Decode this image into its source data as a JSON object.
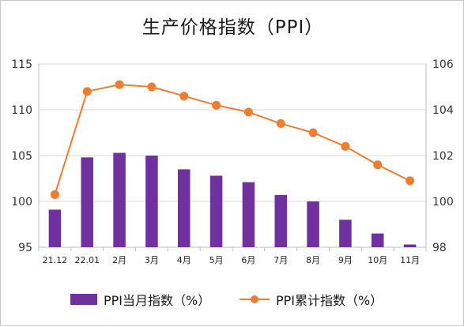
{
  "chart_data": {
    "type": "bar+line",
    "title": "生产价格指数（PPI）",
    "categories": [
      "21.12",
      "22.01",
      "2月",
      "3月",
      "4月",
      "5月",
      "6月",
      "7月",
      "8月",
      "9月",
      "10月",
      "11月"
    ],
    "series": [
      {
        "name": "PPI当月指数（%）",
        "type": "bar",
        "axis": "left",
        "color": "#7030a0",
        "values": [
          99.1,
          104.8,
          105.3,
          105.0,
          103.5,
          102.8,
          102.1,
          100.7,
          100.0,
          98.0,
          96.5,
          95.3
        ]
      },
      {
        "name": "PPI累计指数（%）",
        "type": "line",
        "axis": "right",
        "color": "#ed7d31",
        "values": [
          100.3,
          104.8,
          105.1,
          105.0,
          104.6,
          104.2,
          103.9,
          103.4,
          103.0,
          102.4,
          101.6,
          100.9
        ]
      }
    ],
    "ylim_left": [
      95,
      115
    ],
    "yticks_left": [
      95,
      100,
      105,
      110,
      115
    ],
    "ylim_right": [
      98,
      106
    ],
    "yticks_right": [
      98,
      100,
      102,
      104,
      106
    ],
    "grid": true,
    "legend_position": "bottom"
  }
}
